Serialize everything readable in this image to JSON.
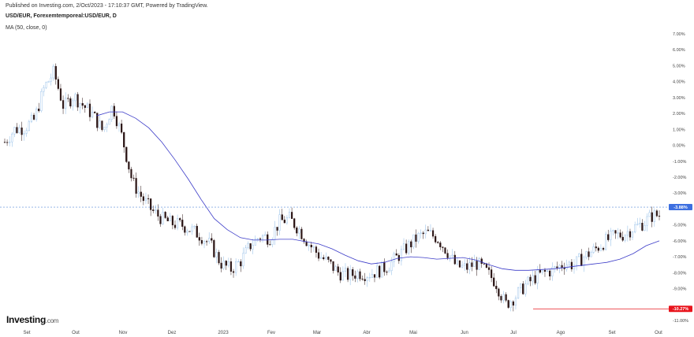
{
  "header": {
    "published": "Published on Investing.com, 2/Oct/2023 - 17:10:37 GMT, Powered by TradingView.",
    "symbol": "USD/EUR, Forexemtemporeal:USD/EUR, D",
    "ma_label": "MA (50, close, 0)"
  },
  "logo": {
    "main": "Investing",
    "suffix": ".com"
  },
  "colors": {
    "up": "#8ab8e6",
    "down": "#2a1414",
    "ma": "#3c3cc8",
    "current_badge": "#3d6fe0",
    "low_badge": "#e8141c",
    "grid_dash": "#5a8ad8"
  },
  "chart_data": {
    "type": "candlestick",
    "title": "USD/EUR, Forexemtemporeal:USD/EUR, D",
    "ylim": [
      -11.0,
      7.5
    ],
    "yticks": [
      7,
      6,
      5,
      4,
      3,
      2,
      1,
      0,
      -1,
      -2,
      -3,
      -5,
      -6,
      -7,
      -8,
      -9,
      -11
    ],
    "ytick_labels": [
      "7.00%",
      "6.00%",
      "5.00%",
      "4.00%",
      "3.00%",
      "2.00%",
      "1.00%",
      "0.00%",
      "-1.00%",
      "-2.00%",
      "-3.00%",
      "-5.00%",
      "-6.00%",
      "-7.00%",
      "-8.00%",
      "-9.00%",
      "-11.00%"
    ],
    "xticks": [
      "Set",
      "Out",
      "Nov",
      "Dez",
      "2023",
      "Fev",
      "Mar",
      "Abr",
      "Mai",
      "Jun",
      "Jul",
      "Ago",
      "Set",
      "Out"
    ],
    "current_value": -3.88,
    "current_label": "-3.88%",
    "low_value": -10.27,
    "low_label": "-10.27%",
    "close_path": [
      [
        0,
        0.2
      ],
      [
        0.03,
        1.0
      ],
      [
        0.06,
        1.1
      ],
      [
        0.09,
        1.6
      ],
      [
        0.12,
        3.6
      ],
      [
        0.15,
        4.6
      ],
      [
        0.18,
        2.4
      ],
      [
        0.21,
        3.1
      ],
      [
        0.24,
        2.5
      ],
      [
        0.27,
        1.9
      ],
      [
        0.3,
        0.9
      ],
      [
        0.33,
        2.5
      ],
      [
        0.36,
        0.4
      ],
      [
        0.39,
        -2.3
      ],
      [
        0.42,
        -3.3
      ],
      [
        0.45,
        -4.1
      ],
      [
        0.48,
        -4.6
      ],
      [
        0.51,
        -4.9
      ],
      [
        0.54,
        -5.0
      ],
      [
        0.57,
        -5.3
      ],
      [
        0.6,
        -5.7
      ],
      [
        0.63,
        -6.3
      ],
      [
        0.66,
        -7.4
      ],
      [
        0.69,
        -7.8
      ],
      [
        0.72,
        -7.3
      ],
      [
        0.75,
        -6.3
      ],
      [
        0.78,
        -5.7
      ],
      [
        0.81,
        -5.8
      ],
      [
        0.84,
        -4.8
      ],
      [
        0.87,
        -4.6
      ],
      [
        0.9,
        -5.3
      ],
      [
        0.93,
        -6.2
      ],
      [
        0.96,
        -6.9
      ],
      [
        0.99,
        -7.4
      ],
      [
        1.02,
        -8.0
      ],
      [
        1.05,
        -8.2
      ],
      [
        1.08,
        -8.0
      ],
      [
        1.11,
        -8.1
      ],
      [
        1.14,
        -7.9
      ],
      [
        1.17,
        -7.6
      ],
      [
        1.2,
        -7.0
      ],
      [
        1.23,
        -6.4
      ],
      [
        1.26,
        -5.8
      ],
      [
        1.29,
        -5.5
      ],
      [
        1.32,
        -5.8
      ],
      [
        1.35,
        -6.6
      ],
      [
        1.38,
        -7.6
      ],
      [
        1.41,
        -7.7
      ],
      [
        1.44,
        -7.4
      ],
      [
        1.47,
        -7.9
      ],
      [
        1.5,
        -8.6
      ],
      [
        1.53,
        -10.0
      ],
      [
        1.56,
        -9.5
      ],
      [
        1.59,
        -8.8
      ],
      [
        1.62,
        -8.3
      ],
      [
        1.65,
        -8.0
      ],
      [
        1.68,
        -7.8
      ],
      [
        1.71,
        -7.4
      ],
      [
        1.74,
        -7.5
      ],
      [
        1.77,
        -7.0
      ],
      [
        1.8,
        -6.6
      ],
      [
        1.83,
        -6.1
      ],
      [
        1.86,
        -5.7
      ],
      [
        1.89,
        -5.6
      ],
      [
        1.92,
        -5.2
      ],
      [
        1.95,
        -4.9
      ],
      [
        1.98,
        -4.4
      ],
      [
        2.0,
        -4.4
      ]
    ],
    "ma_path": [
      [
        0.28,
        1.85
      ],
      [
        0.32,
        2.1
      ],
      [
        0.36,
        2.1
      ],
      [
        0.4,
        1.7
      ],
      [
        0.44,
        1.1
      ],
      [
        0.48,
        0.2
      ],
      [
        0.52,
        -0.9
      ],
      [
        0.56,
        -2.1
      ],
      [
        0.6,
        -3.4
      ],
      [
        0.64,
        -4.6
      ],
      [
        0.68,
        -5.3
      ],
      [
        0.72,
        -5.8
      ],
      [
        0.76,
        -5.95
      ],
      [
        0.8,
        -5.95
      ],
      [
        0.84,
        -5.9
      ],
      [
        0.88,
        -5.9
      ],
      [
        0.92,
        -6.05
      ],
      [
        0.96,
        -6.2
      ],
      [
        1.0,
        -6.5
      ],
      [
        1.04,
        -6.9
      ],
      [
        1.08,
        -7.25
      ],
      [
        1.12,
        -7.45
      ],
      [
        1.16,
        -7.35
      ],
      [
        1.2,
        -7.1
      ],
      [
        1.24,
        -7.0
      ],
      [
        1.28,
        -7.05
      ],
      [
        1.32,
        -7.15
      ],
      [
        1.36,
        -7.1
      ],
      [
        1.4,
        -7.05
      ],
      [
        1.44,
        -7.2
      ],
      [
        1.48,
        -7.5
      ],
      [
        1.52,
        -7.75
      ],
      [
        1.56,
        -7.85
      ],
      [
        1.6,
        -7.85
      ],
      [
        1.64,
        -7.8
      ],
      [
        1.68,
        -7.75
      ],
      [
        1.72,
        -7.65
      ],
      [
        1.76,
        -7.55
      ],
      [
        1.8,
        -7.45
      ],
      [
        1.84,
        -7.35
      ],
      [
        1.88,
        -7.15
      ],
      [
        1.92,
        -6.8
      ],
      [
        1.96,
        -6.3
      ],
      [
        2.0,
        -6.0
      ]
    ]
  }
}
